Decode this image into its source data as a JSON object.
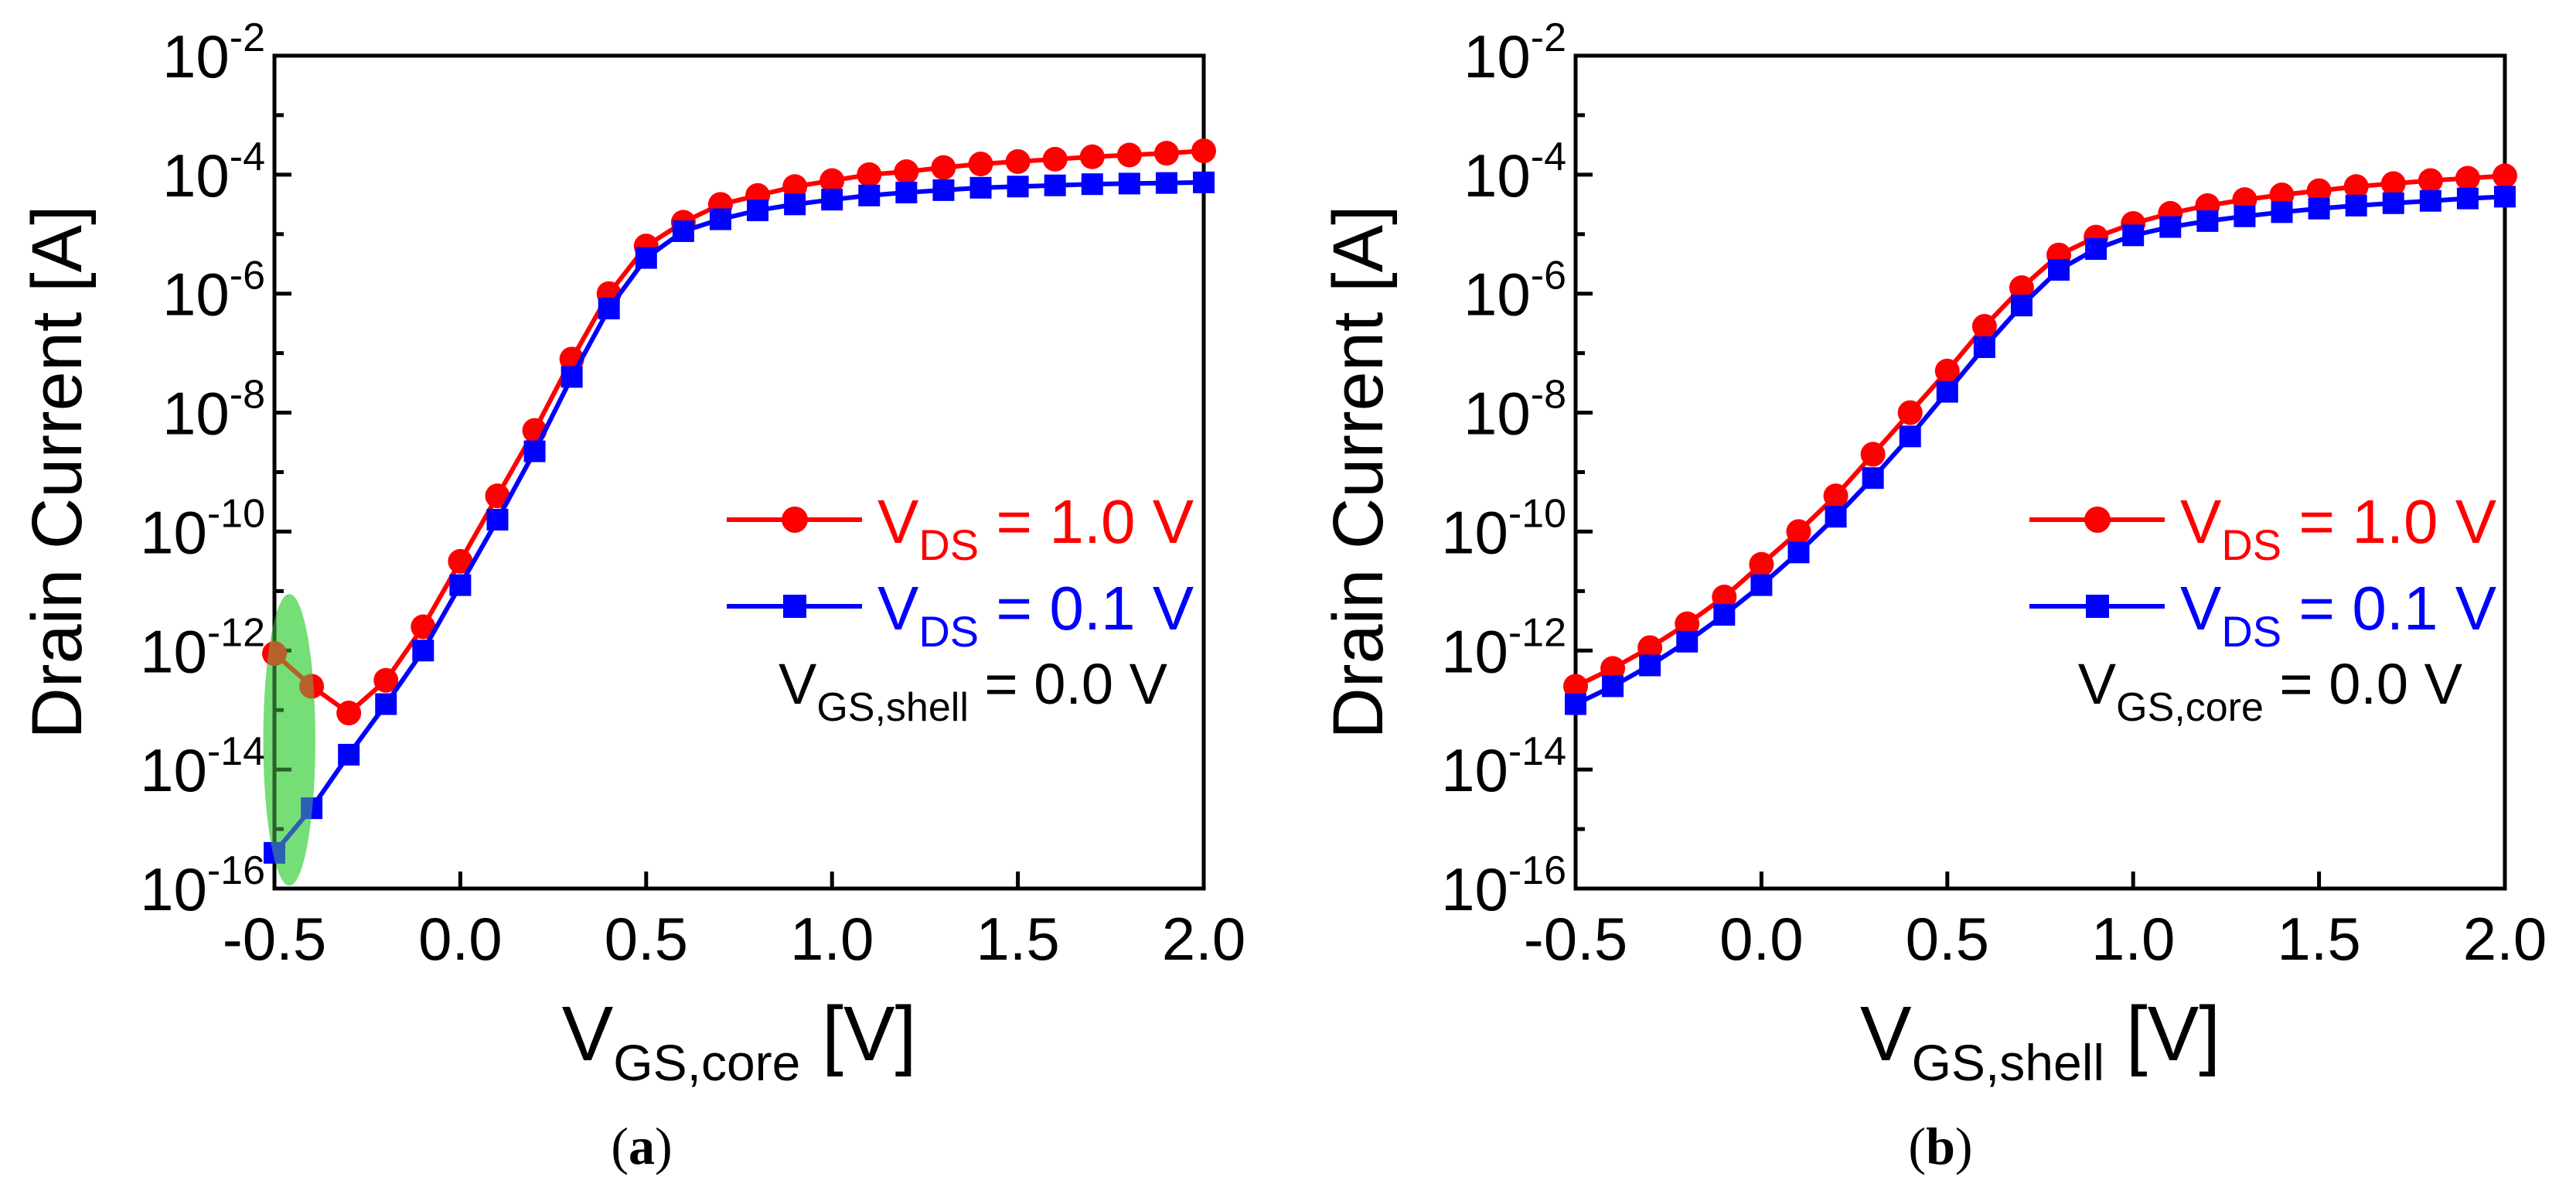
{
  "colors": {
    "series_1": "#ff0000",
    "series_2": "#0000ff",
    "highlight": "#5ed85e",
    "axis": "#000000"
  },
  "chart_data": [
    {
      "type": "line",
      "panel_label": "(a)",
      "panel_letter": "a",
      "title": "",
      "xlabel": {
        "main": "V",
        "sub": "GS,core",
        "tail": " [V]"
      },
      "ylabel": "Drain Current [A]",
      "yscale": "log",
      "xlim": [
        -0.5,
        2.0
      ],
      "ylim_exp": [
        -16,
        -2
      ],
      "x_ticks": [
        -0.5,
        0.0,
        0.5,
        1.0,
        1.5,
        2.0
      ],
      "x_tick_labels": [
        "-0.5",
        "0.0",
        "0.5",
        "1.0",
        "1.5",
        "2.0"
      ],
      "y_tick_exponents": [
        -16,
        -14,
        -12,
        -10,
        -8,
        -6,
        -4,
        -2
      ],
      "y_tick_labels": [
        {
          "base": "10",
          "exp": "-16"
        },
        {
          "base": "10",
          "exp": "-14"
        },
        {
          "base": "10",
          "exp": "-12"
        },
        {
          "base": "10",
          "exp": "-10"
        },
        {
          "base": "10",
          "exp": "-8"
        },
        {
          "base": "10",
          "exp": "-6"
        },
        {
          "base": "10",
          "exp": "-4"
        },
        {
          "base": "10",
          "exp": "-2"
        }
      ],
      "x": [
        -0.5,
        -0.4,
        -0.3,
        -0.2,
        -0.1,
        0.0,
        0.1,
        0.2,
        0.3,
        0.4,
        0.5,
        0.6,
        0.7,
        0.8,
        0.9,
        1.0,
        1.1,
        1.2,
        1.3,
        1.4,
        1.5,
        1.6,
        1.7,
        1.8,
        1.9,
        2.0
      ],
      "series": [
        {
          "name": "VDS = 1.0 V",
          "legend": {
            "main": "V",
            "sub": "DS",
            "tail": " = 1.0 V"
          },
          "marker": "circle",
          "color": "#ff0000",
          "log10_values": [
            -12.05,
            -12.6,
            -13.05,
            -12.5,
            -11.6,
            -10.5,
            -9.4,
            -8.3,
            -7.1,
            -6.0,
            -5.2,
            -4.8,
            -4.5,
            -4.35,
            -4.2,
            -4.1,
            -4.0,
            -3.95,
            -3.88,
            -3.82,
            -3.78,
            -3.74,
            -3.7,
            -3.67,
            -3.64,
            -3.6
          ]
        },
        {
          "name": "VDS = 0.1 V",
          "legend": {
            "main": "V",
            "sub": "DS",
            "tail": " = 0.1 V"
          },
          "marker": "square",
          "color": "#0000ff",
          "log10_values": [
            -15.4,
            -14.65,
            -13.75,
            -12.9,
            -12.0,
            -10.9,
            -9.8,
            -8.65,
            -7.4,
            -6.25,
            -5.4,
            -4.95,
            -4.75,
            -4.6,
            -4.5,
            -4.42,
            -4.35,
            -4.3,
            -4.26,
            -4.22,
            -4.2,
            -4.18,
            -4.16,
            -4.15,
            -4.14,
            -4.13
          ]
        }
      ],
      "annotation": {
        "main": "V",
        "sub": "GS,shell",
        "tail": " = 0.0 V"
      },
      "highlight_region": {
        "x_center": -0.46,
        "log10_center": -13.5,
        "x_halfwidth": 0.07,
        "log10_halfheight": 2.45
      }
    },
    {
      "type": "line",
      "panel_label": "(b)",
      "panel_letter": "b",
      "title": "",
      "xlabel": {
        "main": "V",
        "sub": "GS,shell",
        "tail": " [V]"
      },
      "ylabel": "Drain Current [A]",
      "yscale": "log",
      "xlim": [
        -0.5,
        2.0
      ],
      "ylim_exp": [
        -16,
        -2
      ],
      "x_ticks": [
        -0.5,
        0.0,
        0.5,
        1.0,
        1.5,
        2.0
      ],
      "x_tick_labels": [
        "-0.5",
        "0.0",
        "0.5",
        "1.0",
        "1.5",
        "2.0"
      ],
      "y_tick_exponents": [
        -16,
        -14,
        -12,
        -10,
        -8,
        -6,
        -4,
        -2
      ],
      "y_tick_labels": [
        {
          "base": "10",
          "exp": "-16"
        },
        {
          "base": "10",
          "exp": "-14"
        },
        {
          "base": "10",
          "exp": "-12"
        },
        {
          "base": "10",
          "exp": "-10"
        },
        {
          "base": "10",
          "exp": "-8"
        },
        {
          "base": "10",
          "exp": "-6"
        },
        {
          "base": "10",
          "exp": "-4"
        },
        {
          "base": "10",
          "exp": "-2"
        }
      ],
      "x": [
        -0.5,
        -0.4,
        -0.3,
        -0.2,
        -0.1,
        0.0,
        0.1,
        0.2,
        0.3,
        0.4,
        0.5,
        0.6,
        0.7,
        0.8,
        0.9,
        1.0,
        1.1,
        1.2,
        1.3,
        1.4,
        1.5,
        1.6,
        1.7,
        1.8,
        1.9,
        2.0
      ],
      "series": [
        {
          "name": "VDS = 1.0 V",
          "legend": {
            "main": "V",
            "sub": "DS",
            "tail": " = 1.0 V"
          },
          "marker": "circle",
          "color": "#ff0000",
          "log10_values": [
            -12.6,
            -12.3,
            -11.95,
            -11.55,
            -11.1,
            -10.55,
            -10.0,
            -9.4,
            -8.7,
            -8.0,
            -7.3,
            -6.55,
            -5.9,
            -5.35,
            -5.05,
            -4.82,
            -4.65,
            -4.52,
            -4.42,
            -4.34,
            -4.27,
            -4.2,
            -4.15,
            -4.1,
            -4.06,
            -4.02
          ]
        },
        {
          "name": "VDS = 0.1 V",
          "legend": {
            "main": "V",
            "sub": "DS",
            "tail": " = 0.1 V"
          },
          "marker": "square",
          "color": "#0000ff",
          "log10_values": [
            -12.9,
            -12.6,
            -12.25,
            -11.85,
            -11.4,
            -10.9,
            -10.35,
            -9.75,
            -9.1,
            -8.4,
            -7.65,
            -6.9,
            -6.2,
            -5.6,
            -5.25,
            -5.02,
            -4.88,
            -4.78,
            -4.7,
            -4.63,
            -4.57,
            -4.52,
            -4.48,
            -4.44,
            -4.4,
            -4.37
          ]
        }
      ],
      "annotation": {
        "main": "V",
        "sub": "GS,core",
        "tail": " = 0.0 V"
      }
    }
  ]
}
